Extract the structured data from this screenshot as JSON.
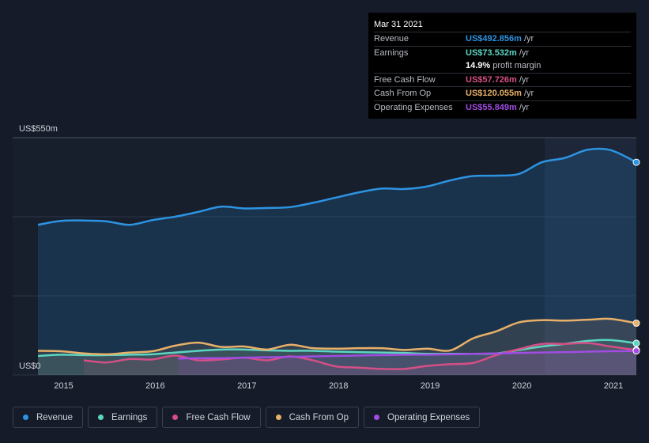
{
  "chart_data": {
    "type": "area",
    "y_top_label": "US$550m",
    "y_bottom_label": "US$0",
    "ylim": [
      0,
      550
    ],
    "xlim": [
      2014.72,
      2021.25
    ],
    "x_ticks": [
      "2015",
      "2016",
      "2017",
      "2018",
      "2019",
      "2020",
      "2021"
    ],
    "grid": true,
    "legend_position": "bottom-left",
    "series": [
      {
        "name": "Revenue",
        "color": "#2d94e2",
        "x": [
          2014.72,
          2014.97,
          2015.22,
          2015.47,
          2015.72,
          2015.97,
          2016.22,
          2016.47,
          2016.72,
          2016.97,
          2017.22,
          2017.47,
          2017.72,
          2017.97,
          2018.22,
          2018.47,
          2018.72,
          2018.97,
          2019.22,
          2019.47,
          2019.72,
          2019.97,
          2020.22,
          2020.47,
          2020.72,
          2020.97,
          2021.25
        ],
        "y": [
          348,
          357,
          358,
          356,
          348,
          359,
          367,
          378,
          390,
          386,
          387,
          389,
          399,
          411,
          423,
          432,
          431,
          437,
          451,
          461,
          462,
          466,
          493,
          503,
          522,
          521,
          493
        ]
      },
      {
        "name": "Earnings",
        "color": "#5cd6c2",
        "x": [
          2014.72,
          2014.97,
          2015.22,
          2015.47,
          2015.72,
          2015.97,
          2016.22,
          2016.47,
          2016.72,
          2016.97,
          2017.22,
          2017.47,
          2017.72,
          2017.97,
          2018.22,
          2018.47,
          2018.72,
          2018.97,
          2019.22,
          2019.47,
          2019.72,
          2019.97,
          2020.22,
          2020.47,
          2020.72,
          2020.97,
          2021.25
        ],
        "y": [
          44,
          47,
          46,
          46,
          47,
          48,
          52,
          56,
          59,
          59,
          57,
          56,
          56,
          54,
          53,
          52,
          51,
          49,
          49,
          49,
          50,
          58,
          66,
          72,
          79,
          81,
          73.5
        ]
      },
      {
        "name": "Free Cash Flow",
        "color": "#d54f86",
        "x": [
          2015.22,
          2015.47,
          2015.72,
          2015.97,
          2016.22,
          2016.47,
          2016.72,
          2016.97,
          2017.22,
          2017.47,
          2017.72,
          2017.97,
          2018.22,
          2018.47,
          2018.72,
          2018.97,
          2019.22,
          2019.47,
          2019.72,
          2019.97,
          2020.22,
          2020.47,
          2020.72,
          2020.97,
          2021.25
        ],
        "y": [
          34,
          29,
          37,
          36,
          45,
          34,
          36,
          40,
          34,
          43,
          34,
          20,
          17,
          14,
          14,
          21,
          25,
          28,
          46,
          60,
          72,
          72,
          74,
          66,
          57.7
        ]
      },
      {
        "name": "Cash From Op",
        "color": "#e8b068",
        "x": [
          2014.72,
          2014.97,
          2015.22,
          2015.47,
          2015.72,
          2015.97,
          2016.22,
          2016.47,
          2016.72,
          2016.97,
          2017.22,
          2017.47,
          2017.72,
          2017.97,
          2018.22,
          2018.47,
          2018.72,
          2018.97,
          2019.22,
          2019.47,
          2019.72,
          2019.97,
          2020.22,
          2020.47,
          2020.72,
          2020.97,
          2021.25
        ],
        "y": [
          56,
          55,
          50,
          48,
          52,
          55,
          68,
          75,
          65,
          66,
          59,
          70,
          62,
          61,
          62,
          62,
          58,
          61,
          57,
          85,
          101,
          122,
          127,
          126,
          128,
          130,
          120
        ]
      },
      {
        "name": "Operating Expenses",
        "color": "#a14ce3",
        "x": [
          2016.25,
          2016.47,
          2016.72,
          2016.97,
          2017.22,
          2017.47,
          2017.72,
          2017.97,
          2018.22,
          2018.47,
          2018.72,
          2018.97,
          2019.22,
          2019.47,
          2019.72,
          2019.97,
          2020.22,
          2020.47,
          2020.72,
          2020.97,
          2021.25
        ],
        "y": [
          38,
          39,
          39,
          40,
          41,
          42,
          43,
          44,
          45,
          46,
          47,
          47,
          48,
          49,
          50,
          51,
          52,
          53,
          54,
          55,
          55.8
        ]
      }
    ],
    "highlight_from_x": 2020.25
  },
  "tooltip": {
    "date": "Mar 31 2021",
    "rows": [
      {
        "label": "Revenue",
        "value": "US$492.856m",
        "unit": "/yr",
        "color": "#2d94e2"
      },
      {
        "label": "Earnings",
        "value": "US$73.532m",
        "unit": "/yr",
        "color": "#5cd6c2"
      },
      {
        "label": "",
        "value": "14.9%",
        "unit": "profit margin",
        "color": "#ffffff"
      },
      {
        "label": "Free Cash Flow",
        "value": "US$57.726m",
        "unit": "/yr",
        "color": "#d54f86"
      },
      {
        "label": "Cash From Op",
        "value": "US$120.055m",
        "unit": "/yr",
        "color": "#e8b068"
      },
      {
        "label": "Operating Expenses",
        "value": "US$55.849m",
        "unit": "/yr",
        "color": "#a14ce3"
      }
    ]
  },
  "legend": [
    {
      "label": "Revenue",
      "color": "#2d94e2"
    },
    {
      "label": "Earnings",
      "color": "#5cd6c2"
    },
    {
      "label": "Free Cash Flow",
      "color": "#d54f86"
    },
    {
      "label": "Cash From Op",
      "color": "#e8b068"
    },
    {
      "label": "Operating Expenses",
      "color": "#a14ce3"
    }
  ]
}
